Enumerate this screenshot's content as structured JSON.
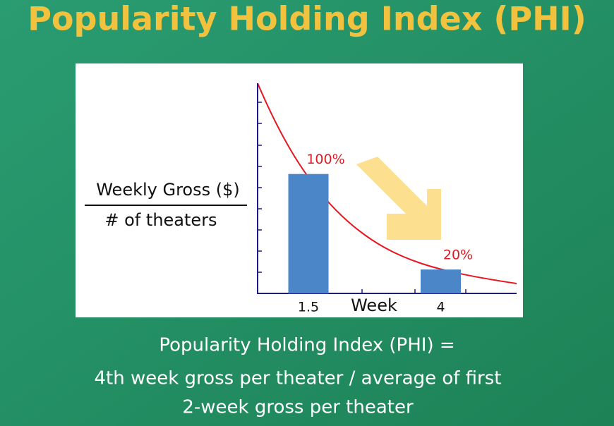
{
  "title": "Popularity Holding Index (PHI)",
  "chart_data": {
    "type": "bar",
    "x": [
      1.5,
      4
    ],
    "values": [
      100,
      20
    ],
    "value_labels": [
      "100%",
      "20%"
    ],
    "xlim": [
      0.5,
      5.5
    ],
    "xticks": [
      1.5,
      4
    ],
    "ylim": [
      0,
      176
    ],
    "xlabel": "Week",
    "ylabel": {
      "numerator": "Weekly Gross ($)",
      "denominator": "# of theaters"
    },
    "color": "#4a86c8",
    "label_color": "#e01a22"
  },
  "footer": [
    "Popularity Holding Index (PHI) =",
    "4th week gross per theater / average of first",
    "2-week gross per theater"
  ]
}
